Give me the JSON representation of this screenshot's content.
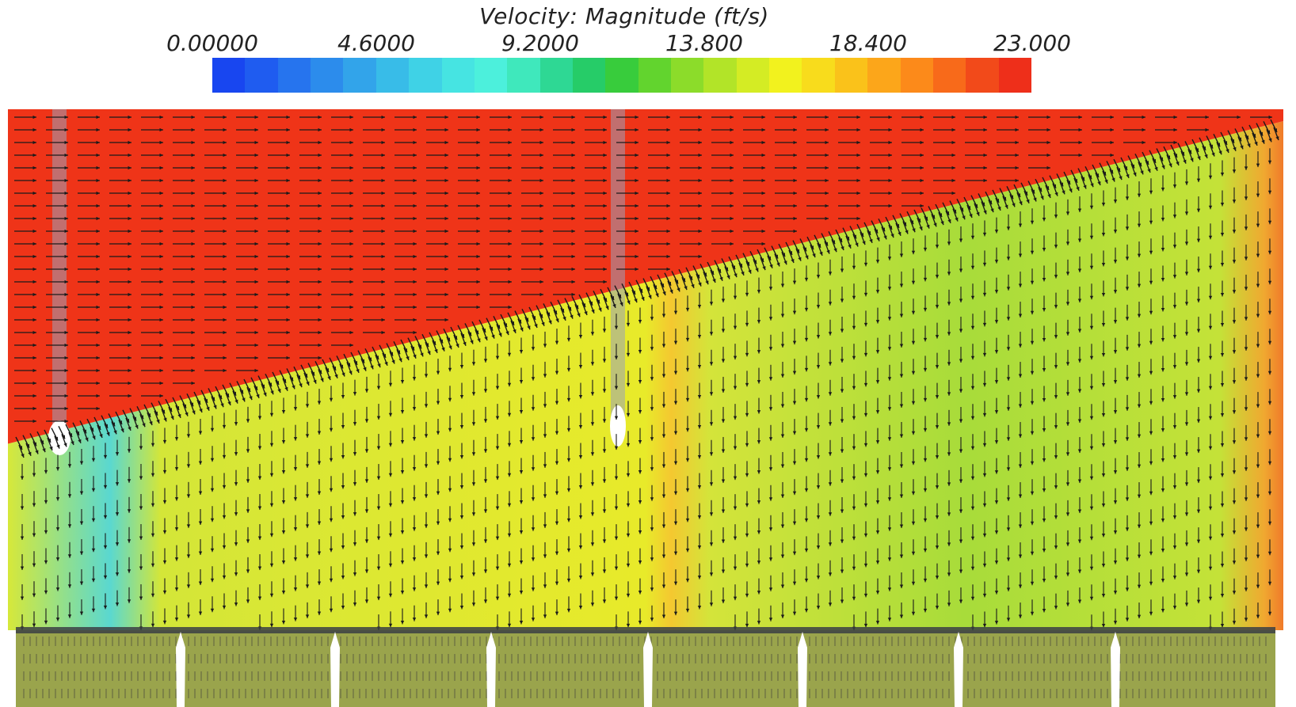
{
  "legend": {
    "title": "Velocity: Magnitude (ft/s)",
    "ticks": [
      "0.00000",
      "4.6000",
      "9.2000",
      "13.800",
      "18.400",
      "23.000"
    ],
    "min": 0,
    "max": 23,
    "colors": [
      "#1846f0",
      "#1f5cf0",
      "#2674ee",
      "#2c8cec",
      "#32a4ea",
      "#38bce8",
      "#3fd2e6",
      "#46e4e2",
      "#4cf0dc",
      "#3fe8bc",
      "#2ed894",
      "#26cc68",
      "#38cc3c",
      "#62d42e",
      "#8cdc2a",
      "#b2e428",
      "#d4ec24",
      "#f2f21e",
      "#f8dc1c",
      "#fac21a",
      "#fca61a",
      "#fc8a1a",
      "#f86a1a",
      "#f24a1a",
      "#ee2f1a"
    ]
  },
  "field": {
    "upper_color": "#ef3418",
    "lower_color": "#c8e234",
    "bottom_band_color": "#9aa44c",
    "arrow_color": "#1a1a1a"
  }
}
